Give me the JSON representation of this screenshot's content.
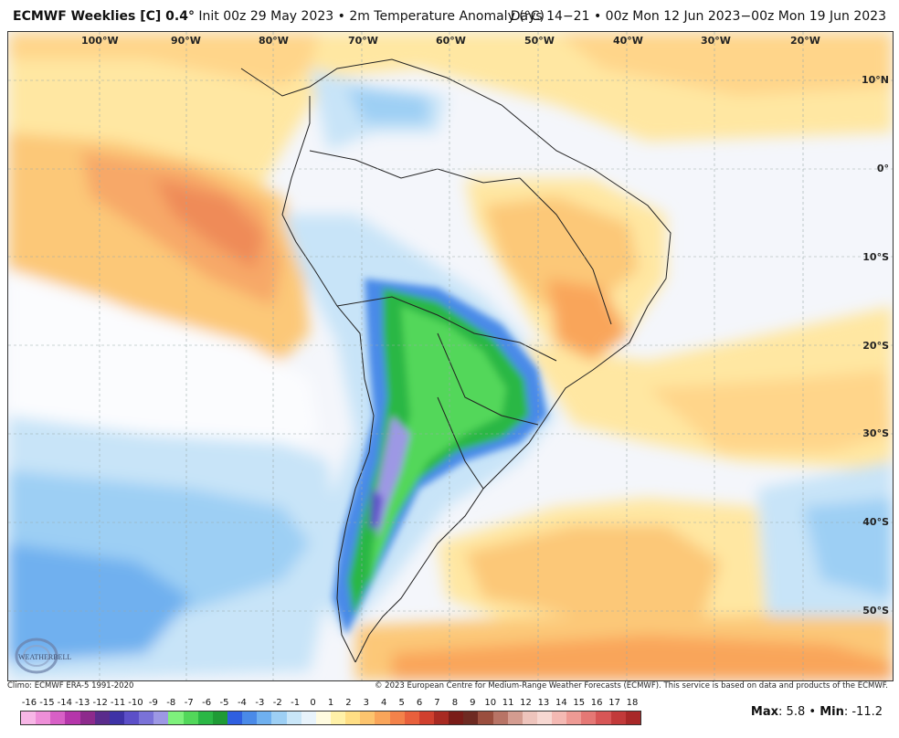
{
  "header": {
    "title": "ECMWF Weeklies [C] 0.4°",
    "init": "Init 00z 29 May 2023",
    "variable": "2m Temperature Anomaly (°C)",
    "valid": "Days 14−21 • 00z Mon 12 Jun 2023−00z Mon 19 Jun 2023"
  },
  "longitude_labels": [
    "100°W",
    "90°W",
    "80°W",
    "70°W",
    "60°W",
    "50°W",
    "40°W",
    "30°W",
    "20°W"
  ],
  "latitude_labels": [
    "10°N",
    "0°",
    "10°S",
    "20°S",
    "30°S",
    "40°S",
    "50°S"
  ],
  "credits": {
    "climo": "Climo: ECMWF ERA-5 1991-2020",
    "copyright": "© 2023 European Centre for Medium-Range Weather Forecasts (ECMWF). This service is based on data and products of the ECMWF."
  },
  "logo": {
    "text": "WEATHERBELL"
  },
  "colorbar": {
    "labels": [
      "-16",
      "-15",
      "-14",
      "-13",
      "-12",
      "-11",
      "-10",
      "-9",
      "-8",
      "-7",
      "-6",
      "-5",
      "-4",
      "-3",
      "-2",
      "-1",
      "0",
      "1",
      "2",
      "3",
      "4",
      "5",
      "6",
      "7",
      "8",
      "9",
      "10",
      "11",
      "12",
      "13",
      "14",
      "15",
      "16",
      "17",
      "18"
    ],
    "colors": [
      "#f7b6e6",
      "#ee8fd8",
      "#d860c6",
      "#b536aa",
      "#8d2a8c",
      "#5a2c8c",
      "#3e32a6",
      "#5c4fc8",
      "#7a72d8",
      "#9d98e4",
      "#7ef07c",
      "#52d75a",
      "#2bb745",
      "#1f9b35",
      "#2f5fe0",
      "#4a8ae8",
      "#6fb0ef",
      "#9dcff4",
      "#c9e6f8",
      "#e8f3fb",
      "#fffbe0",
      "#fff1a8",
      "#ffde84",
      "#fcc46e",
      "#f9a55a",
      "#f3824a",
      "#e8603c",
      "#d0402e",
      "#a82a22",
      "#7a1c18",
      "#6e2a22",
      "#9a4e3e",
      "#b87466",
      "#d49c90",
      "#eec4bc",
      "#f7d8d2",
      "#f4b9b3",
      "#ee9a94",
      "#e57875",
      "#d75656",
      "#c23a3a",
      "#a82828"
    ],
    "max_label": "Max",
    "max_value": "5.8",
    "min_label": "Min",
    "min_value": "-11.2",
    "separator": "•"
  }
}
